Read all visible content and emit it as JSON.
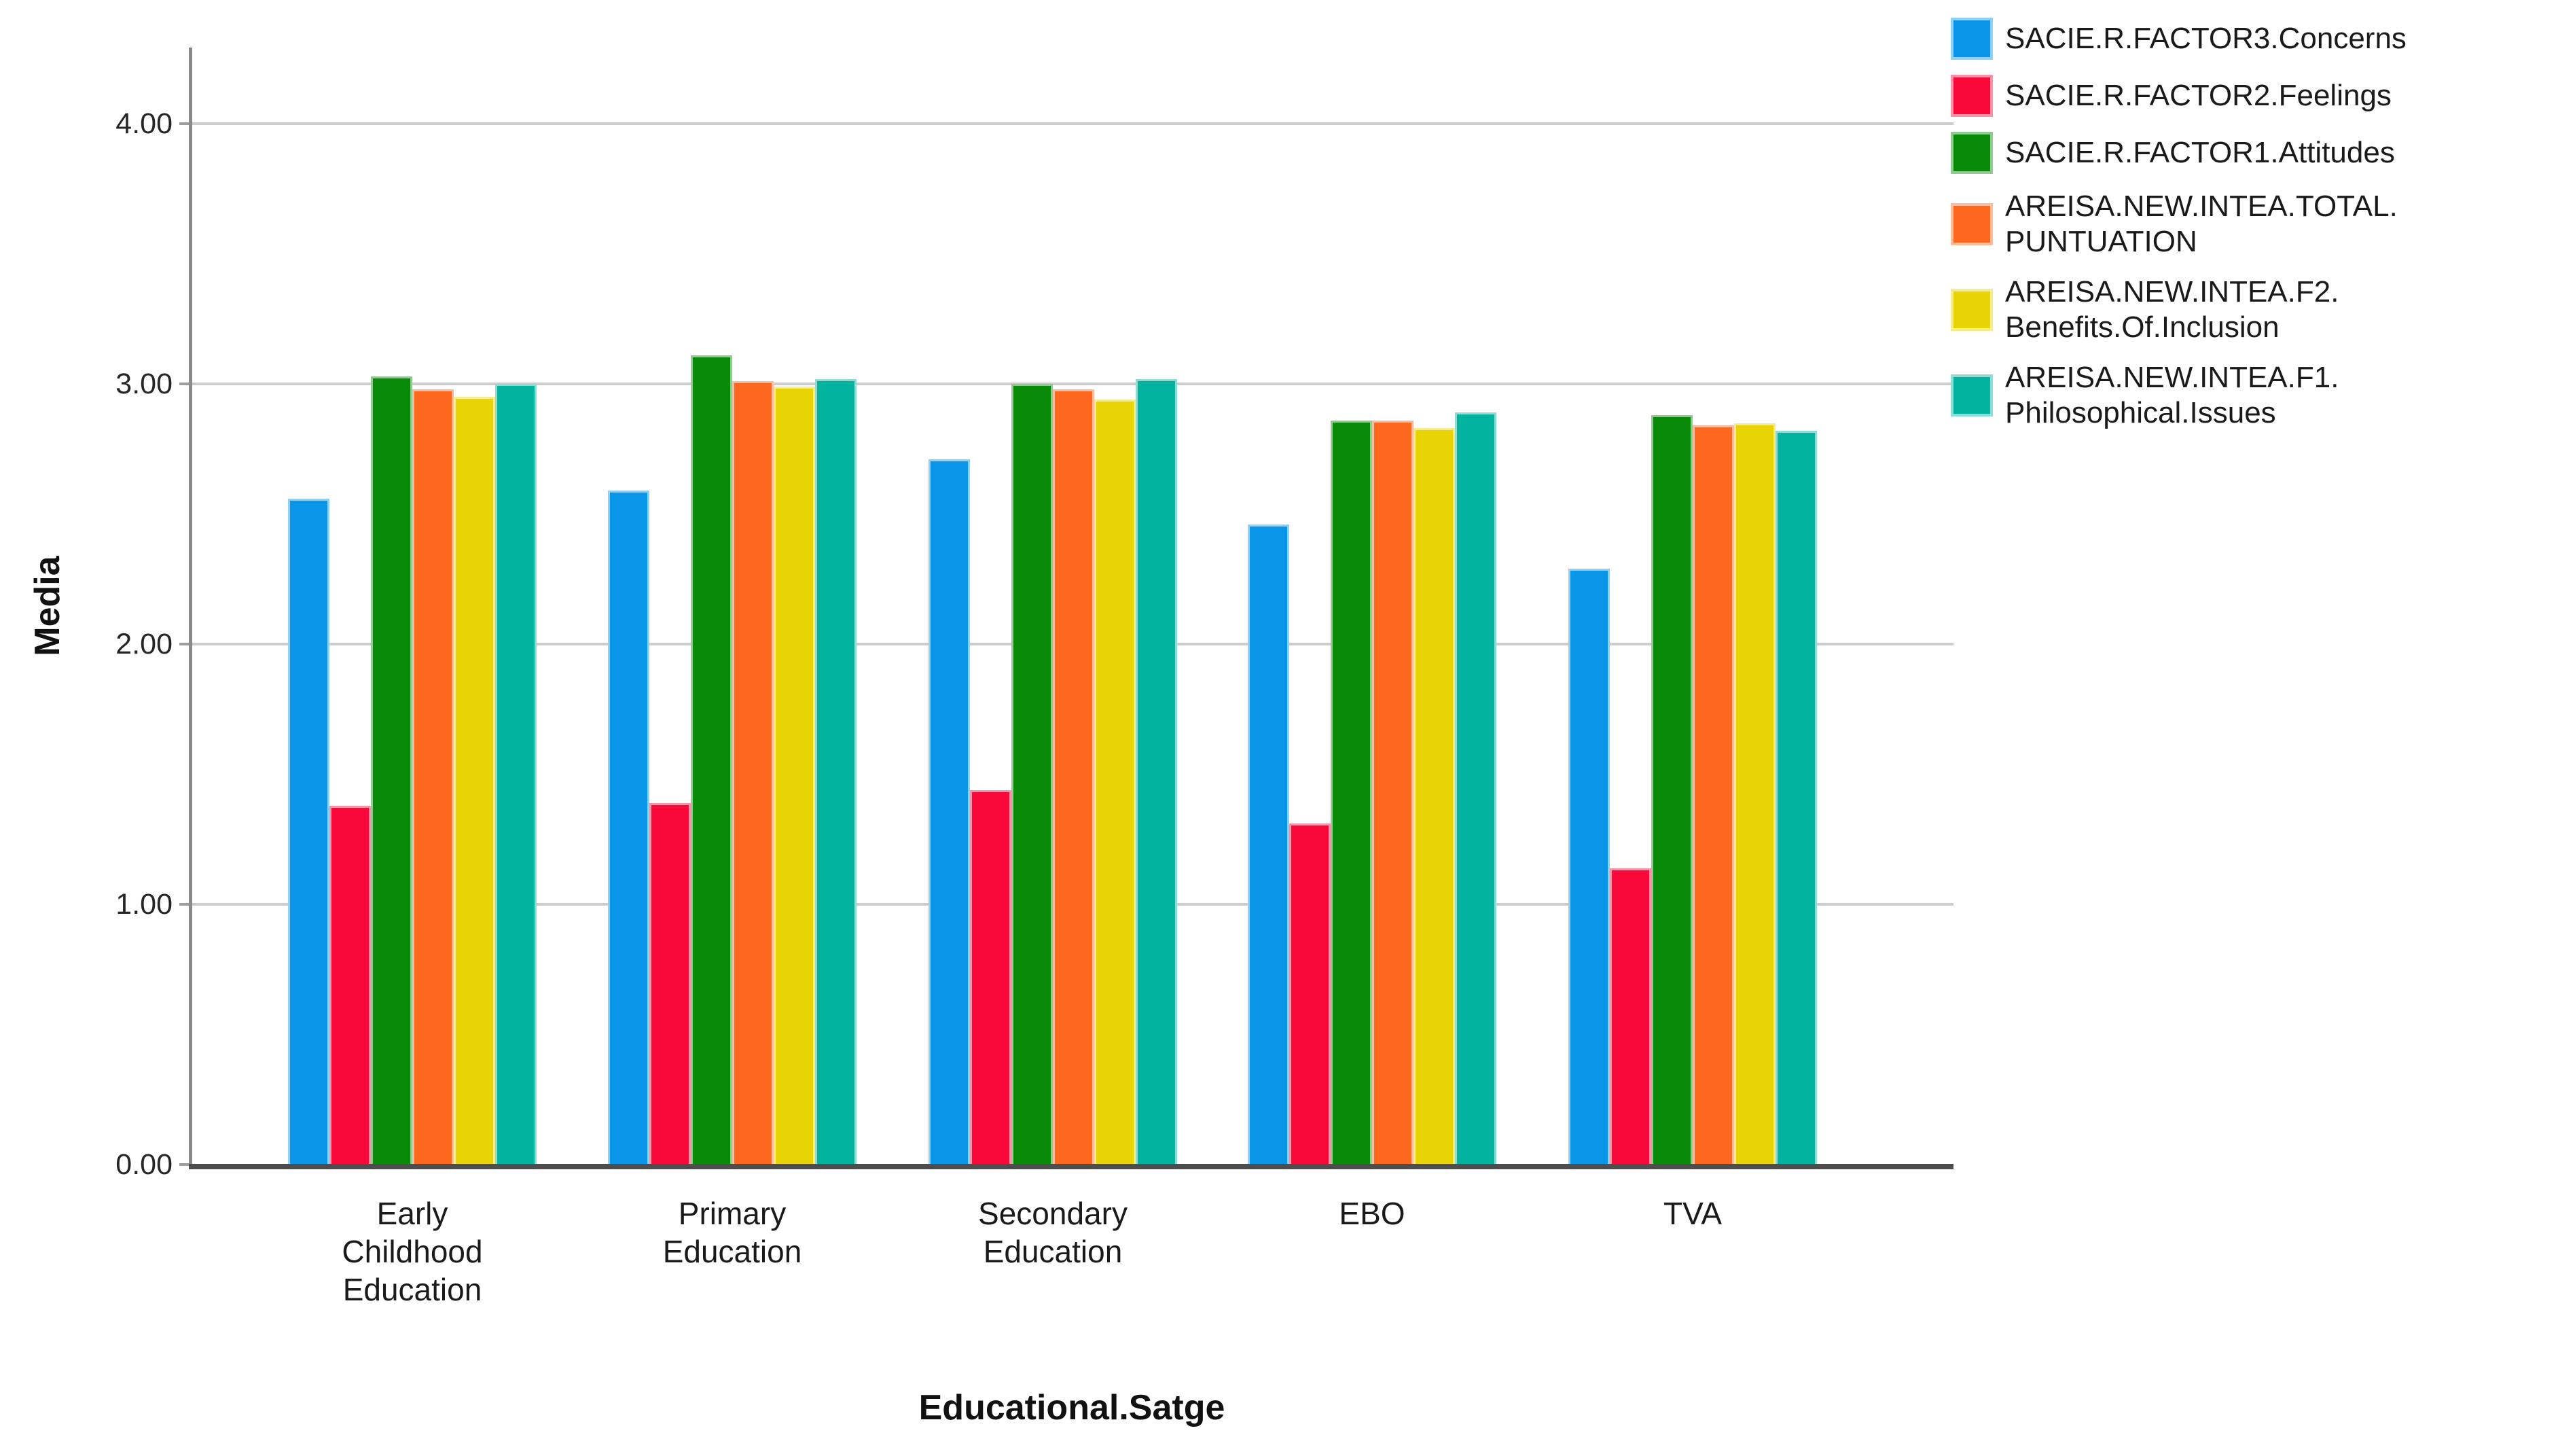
{
  "chart_data": {
    "type": "bar",
    "title": "",
    "xlabel": "Educational.Satge",
    "ylabel": "Media",
    "categories": [
      "Early Childhood Education",
      "Primary Education",
      "Secondary Education",
      "EBO",
      "TVA"
    ],
    "category_display": [
      "Early\nChildhood\nEducation",
      "Primary\nEducation",
      "Secondary\nEducation",
      "EBO",
      "TVA"
    ],
    "y_ticks": [
      {
        "value": 0,
        "label": "0.00"
      },
      {
        "value": 1,
        "label": "1.00"
      },
      {
        "value": 2,
        "label": "2.00"
      },
      {
        "value": 3,
        "label": "3.00"
      },
      {
        "value": 4,
        "label": "4.00"
      }
    ],
    "ylim": [
      0,
      4.3
    ],
    "grid": "horizontal",
    "legend_position": "right",
    "background_color": "#ffffff",
    "gridline_color": "#cccccc",
    "series": [
      {
        "name": "SACIE.R.FACTOR3.Concerns",
        "legend_display": "SACIE.R.FACTOR3.Concerns",
        "color": "#0a96e8",
        "values": [
          2.57,
          2.6,
          2.72,
          2.47,
          2.3
        ]
      },
      {
        "name": "SACIE.R.FACTOR2.Feelings",
        "legend_display": "SACIE.R.FACTOR2.Feelings",
        "color": "#f9093a",
        "values": [
          1.39,
          1.4,
          1.45,
          1.32,
          1.15
        ]
      },
      {
        "name": "SACIE.R.FACTOR1.Attitudes",
        "legend_display": "SACIE.R.FACTOR1.Attitudes",
        "color": "#088a08",
        "values": [
          3.04,
          3.12,
          3.01,
          2.87,
          2.89
        ]
      },
      {
        "name": "AREISA.NEW.INTEA.TOTAL.PUNTUATION",
        "legend_display": "AREISA.NEW.INTEA.TOTAL.\nPUNTUATION",
        "color": "#fd671e",
        "values": [
          2.99,
          3.02,
          2.99,
          2.87,
          2.85
        ]
      },
      {
        "name": "AREISA.NEW.INTEA.F2.Benefits.Of.Inclusion",
        "legend_display": "AREISA.NEW.INTEA.F2.\nBenefits.Of.Inclusion",
        "color": "#e8d404",
        "values": [
          2.96,
          3.0,
          2.95,
          2.84,
          2.86
        ]
      },
      {
        "name": "AREISA.NEW.INTEA.F1.Philosophical.Issues",
        "legend_display": "AREISA.NEW.INTEA.F1.\nPhilosophical.Issues",
        "color": "#02b3a0",
        "values": [
          3.01,
          3.03,
          3.03,
          2.9,
          2.83
        ]
      }
    ]
  }
}
